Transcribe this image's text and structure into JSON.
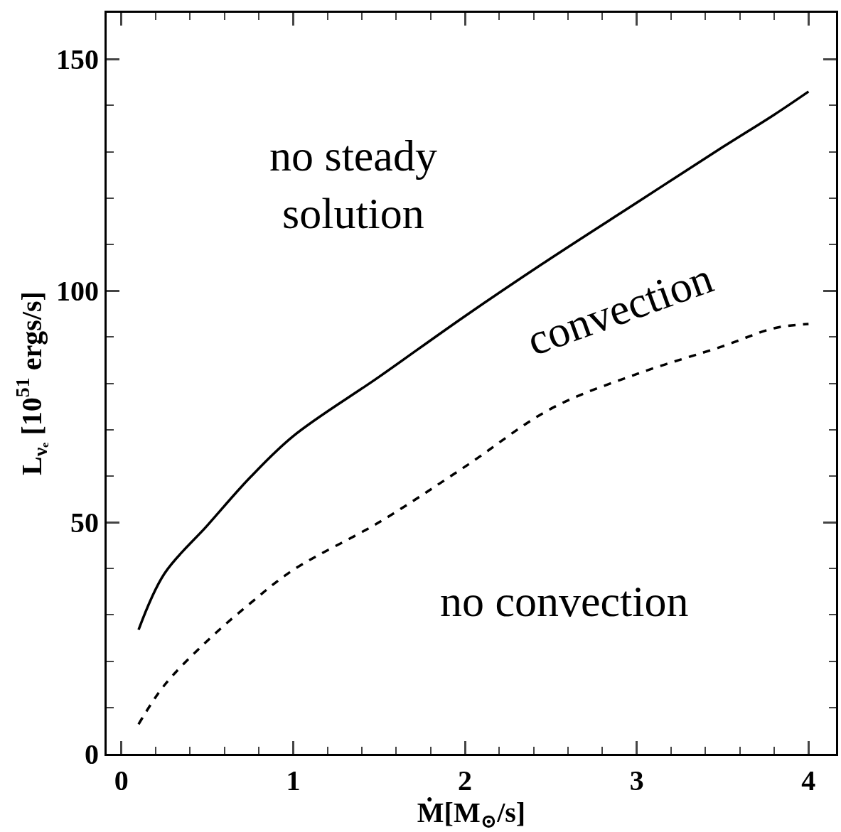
{
  "chart_data": {
    "type": "line",
    "xlabel": "Ṁ[M$_{⊙}$/s]",
    "ylabel": "L$_{νₑ}$ [10$^{51}$ ergs/s]",
    "x": [
      0.1,
      0.25,
      0.5,
      0.75,
      1,
      1.5,
      2,
      2.5,
      3,
      3.5,
      3.8,
      4
    ],
    "series": [
      {
        "color": "#000000",
        "line_style": "solid",
        "values": [
          26.8,
          38.9,
          49.3,
          59.7,
          68.6,
          81.4,
          94.5,
          107,
          119,
          131,
          138,
          143
        ]
      },
      {
        "color": "#000000",
        "line_style": "dashed",
        "values": [
          6.4,
          14.8,
          24.4,
          32.5,
          39.7,
          50,
          62,
          74.5,
          82,
          88,
          91.9,
          92.8
        ]
      }
    ],
    "annotations": [
      "no steady\nsolution",
      "convection",
      "no convection"
    ],
    "xlim": [
      -0.086,
      4.16
    ],
    "ylim": [
      0,
      160
    ],
    "xticks": [
      0,
      1,
      2,
      3,
      4
    ],
    "yticks": [
      0,
      50,
      100,
      150
    ],
    "grid": false,
    "marker": "none"
  }
}
